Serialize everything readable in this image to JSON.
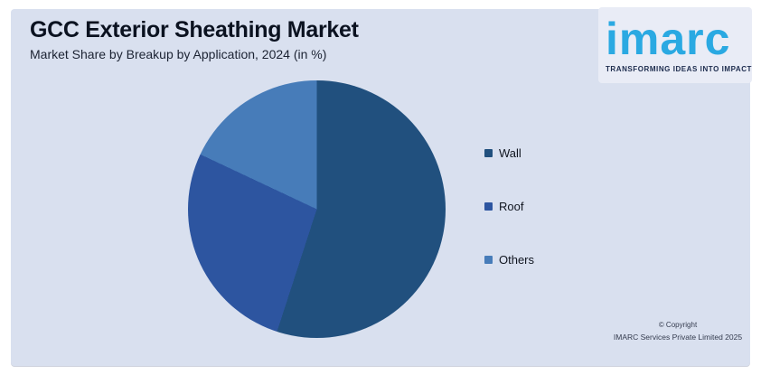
{
  "header": {
    "title": "GCC Exterior Sheathing Market",
    "subtitle": "Market Share by Breakup by Application, 2024 (in %)"
  },
  "logo": {
    "wordmark": "imarc",
    "tagline": "TRANSFORMING IDEAS INTO IMPACT",
    "wordmark_color": "#2aa9e2",
    "tagline_color": "#1c2b4d"
  },
  "chart_data": {
    "type": "pie",
    "title": "GCC Exterior Sheathing Market",
    "subtitle": "Market Share by Breakup by Application, 2024 (in %)",
    "categories": [
      "Wall",
      "Roof",
      "Others"
    ],
    "values": [
      55,
      27,
      18
    ],
    "colors": [
      "#21507e",
      "#2d55a0",
      "#477cb9"
    ],
    "start_angle_deg": 0,
    "direction": "clockwise",
    "legend_position": "right",
    "data_labels": false
  },
  "footer": {
    "copyright_line1": "© Copyright",
    "copyright_line2": "IMARC Services Private Limited 2025"
  },
  "colors": {
    "page_background": "#ffffff",
    "panel_background": "#d9e0ef"
  }
}
